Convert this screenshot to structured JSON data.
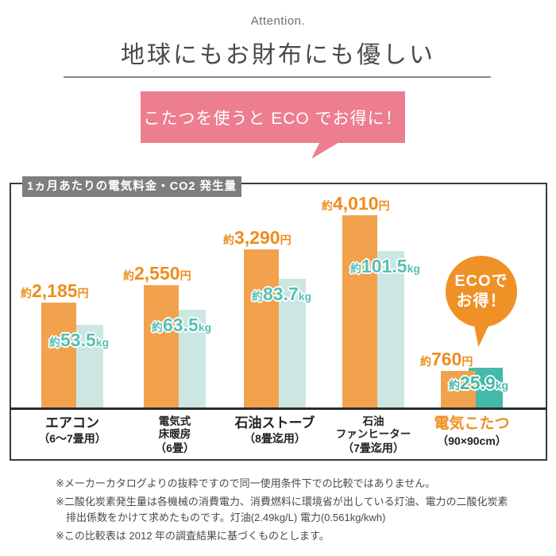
{
  "header": {
    "eyebrow": "Attention.",
    "title": "地球にもお財布にも優しい"
  },
  "bubble": {
    "text": "こたつを使うと ECO でお得に！",
    "color": "#ed7e8f"
  },
  "chart": {
    "badge_label": "1ヵ月あたりの電気料金・CO2 発生量",
    "eco_badge": {
      "line1": "ECOで",
      "line2": "お得！",
      "color": "#ef9126"
    }
  },
  "chart_data": {
    "type": "bar",
    "title": "1ヵ月あたりの電気料金・CO2発生量",
    "categories": [
      "エアコン（6～7畳用）",
      "電気式床暖房（6畳）",
      "石油ストーブ（8畳迄用）",
      "石油ファンヒーター（7畳迄用）",
      "電気こたつ（90×90cm）"
    ],
    "series": [
      {
        "name": "電気料金",
        "unit": "円",
        "values": [
          2185,
          2550,
          3290,
          4010,
          760
        ],
        "value_labels": [
          "約2,185円",
          "約2,550円",
          "約3,290円",
          "約4,010円",
          "約760円"
        ],
        "color": "#f2a24c"
      },
      {
        "name": "CO2発生量",
        "unit": "kg",
        "values": [
          53.5,
          63.5,
          83.7,
          101.5,
          25.9
        ],
        "value_labels": [
          "約53.5kg",
          "約63.5kg",
          "約83.7kg",
          "約101.5kg",
          "約25.9kg"
        ],
        "color": "#cce7e2"
      }
    ],
    "groups": [
      {
        "cost_num": "2,185",
        "co2_num": "53.5",
        "name_lines": [
          "エアコン"
        ],
        "size_line": "（6～7畳用）",
        "highlight": false
      },
      {
        "cost_num": "2,550",
        "co2_num": "63.5",
        "name_lines": [
          "電気式",
          "床暖房"
        ],
        "size_line": "（6畳）",
        "highlight": false
      },
      {
        "cost_num": "3,290",
        "co2_num": "83.7",
        "name_lines": [
          "石油ストーブ"
        ],
        "size_line": "（8畳迄用）",
        "highlight": false
      },
      {
        "cost_num": "4,010",
        "co2_num": "101.5",
        "name_lines": [
          "石油",
          "ファンヒーター"
        ],
        "size_line": "（7畳迄用）",
        "highlight": false
      },
      {
        "cost_num": "760",
        "co2_num": "25.9",
        "name_lines": [
          "電気こたつ"
        ],
        "size_line": "（90×90cm）",
        "highlight": true
      }
    ],
    "approx_prefix": "約",
    "units": {
      "cost": "円",
      "co2": "kg"
    },
    "axis": {
      "baseline": true,
      "grid": false,
      "legend": "none",
      "cost_range": [
        0,
        4010
      ],
      "co2_range": [
        0,
        101.5
      ]
    },
    "colors": {
      "cost_bar": "#f2a24c",
      "cost_text": "#ee8d1e",
      "co2_bar": "#cce7e2",
      "co2_text": "#58bfb4",
      "co2_bar_highlight": "#45b9aa",
      "co2_text_highlight": "#45b9aa",
      "highlight_category": "#ee8d1e"
    }
  },
  "footnotes": [
    "※メーカーカタログよりの抜粋ですので同一使用条件下での比較ではありません。",
    "※二酸化炭素発生量は各機械の消費電力、消費燃料に環境省が出している灯油、電力の二酸化炭素排出係数をかけて求めたものです。灯油(2.49kg/L) 電力(0.561kg/kwh)",
    "※この比較表は 2012 年の調査結果に基づくものとします。"
  ]
}
